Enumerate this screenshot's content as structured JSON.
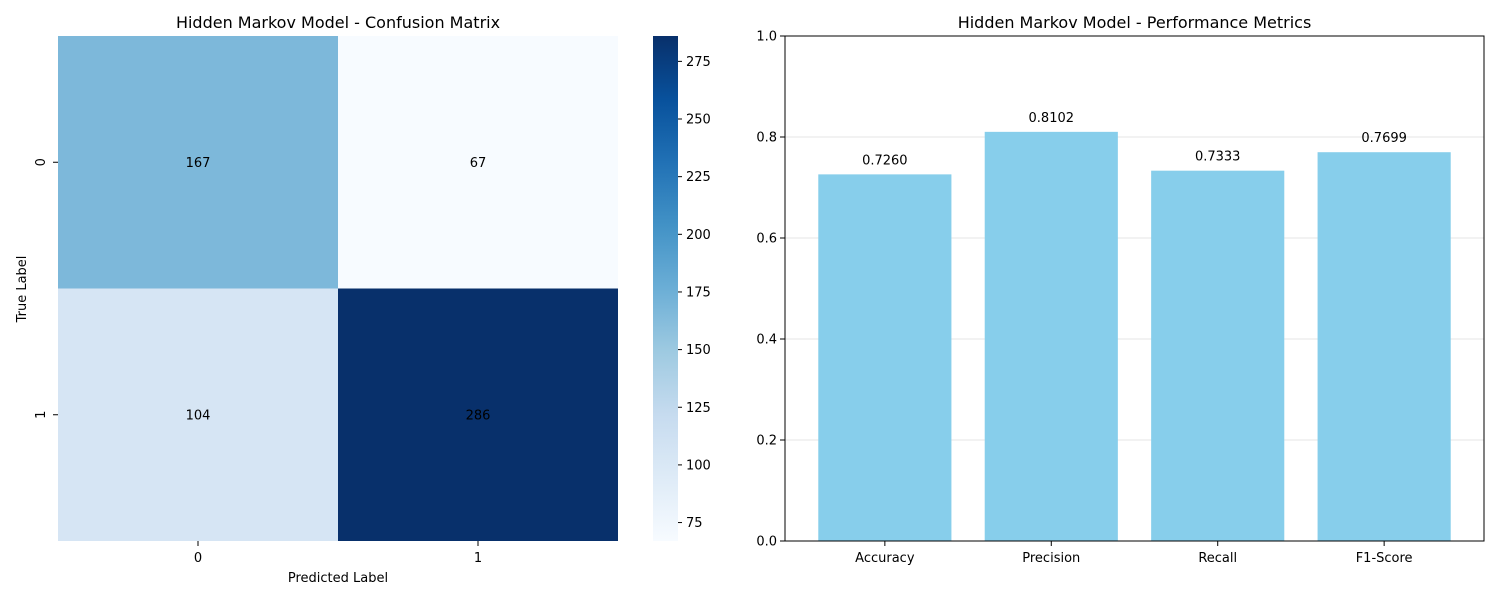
{
  "chart_data": [
    {
      "type": "heatmap",
      "title": "Hidden Markov Model - Confusion Matrix",
      "xlabel": "Predicted Label",
      "ylabel": "True Label",
      "x_categories": [
        "0",
        "1"
      ],
      "y_categories": [
        "0",
        "1"
      ],
      "values": [
        [
          167,
          67
        ],
        [
          104,
          286
        ]
      ],
      "colormap": "Blues",
      "colorbar": {
        "ticks": [
          "75",
          "100",
          "125",
          "150",
          "175",
          "200",
          "225",
          "250",
          "275"
        ],
        "range": [
          67,
          286
        ]
      }
    },
    {
      "type": "bar",
      "title": "Hidden Markov Model - Performance Metrics",
      "categories": [
        "Accuracy",
        "Precision",
        "Recall",
        "F1-Score"
      ],
      "values": [
        0.726,
        0.8102,
        0.7333,
        0.7699
      ],
      "data_labels": [
        "0.7260",
        "0.8102",
        "0.7333",
        "0.7699"
      ],
      "xlabel": "",
      "ylabel": "",
      "ylim": [
        0,
        1.0
      ],
      "yticks": [
        "0.0",
        "0.2",
        "0.4",
        "0.6",
        "0.8",
        "1.0"
      ],
      "grid": "y",
      "bar_color": "#87CEEB"
    }
  ]
}
